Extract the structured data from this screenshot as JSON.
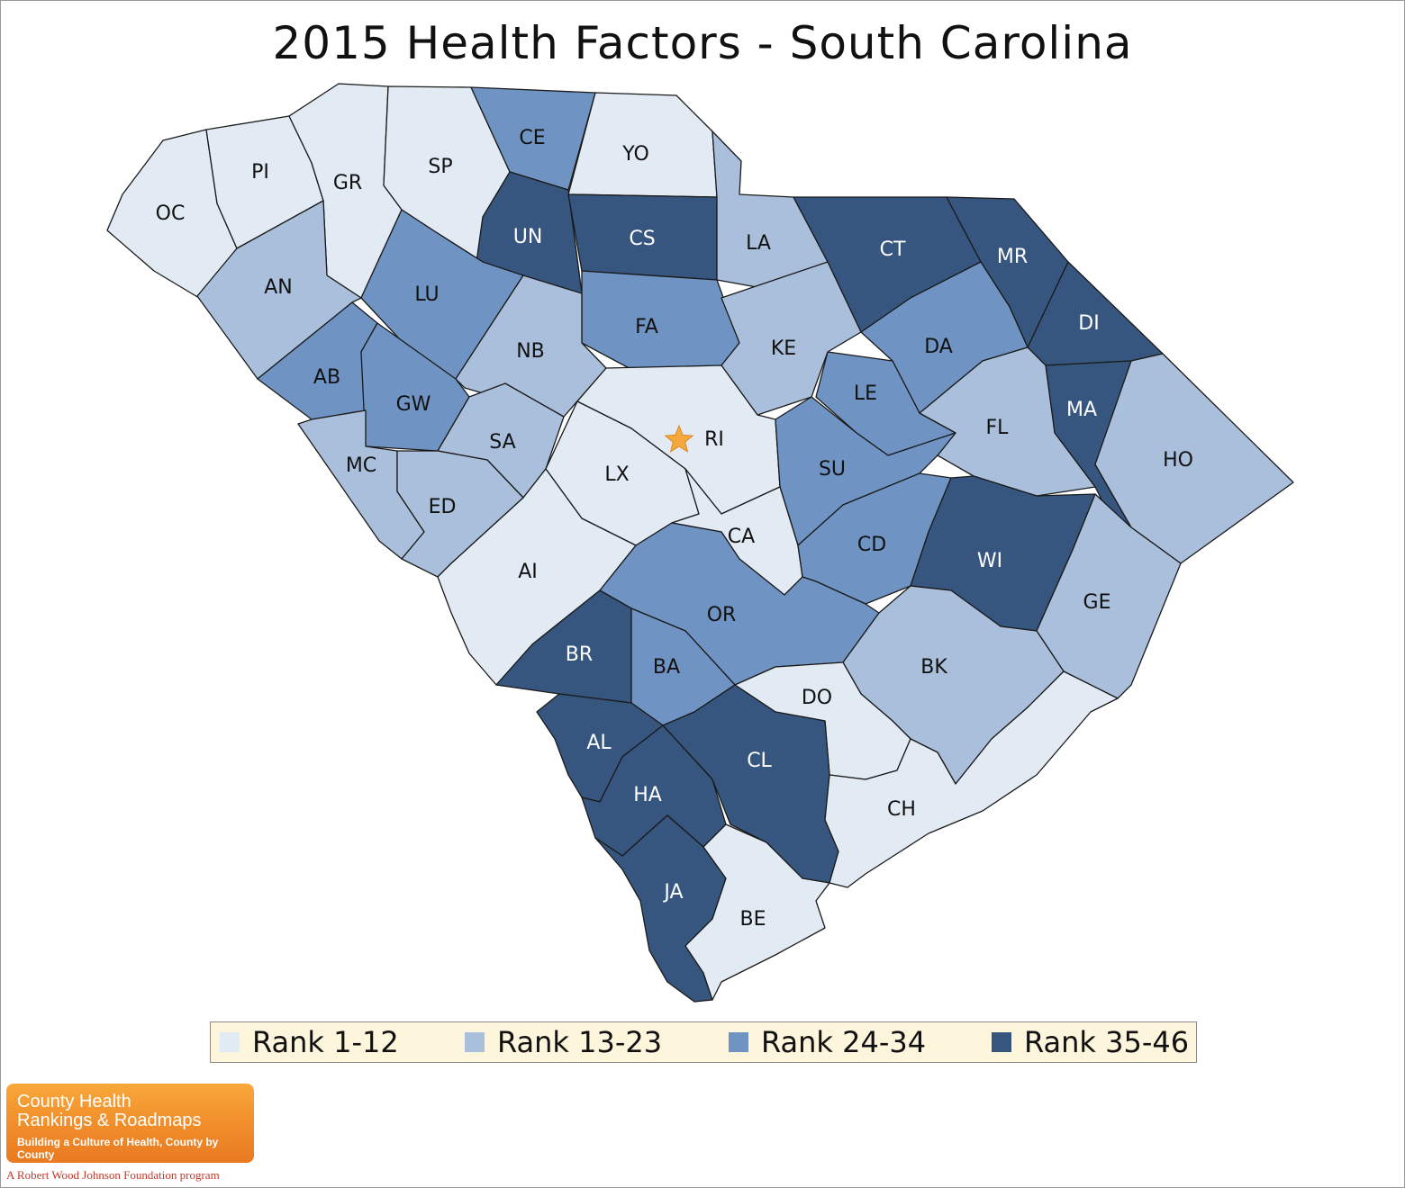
{
  "title": "2015 Health Factors - South Carolina",
  "colors": {
    "rank_1_12": "#e2eaf4",
    "rank_13_23": "#a9bfdb",
    "rank_24_34": "#6f94c3",
    "rank_35_46": "#36567f",
    "capital_star": "#f6a93b",
    "legend_bg": "#fdf5dc"
  },
  "legend": [
    {
      "label": "Rank 1-12",
      "group": "rank_1_12"
    },
    {
      "label": "Rank 13-23",
      "group": "rank_13_23"
    },
    {
      "label": "Rank 24-34",
      "group": "rank_24_34"
    },
    {
      "label": "Rank 35-46",
      "group": "rank_35_46"
    }
  ],
  "capital": {
    "icon": "star-icon",
    "county": "RI"
  },
  "counties": [
    {
      "abbr": "OC",
      "group": "rank_1_12"
    },
    {
      "abbr": "PI",
      "group": "rank_1_12"
    },
    {
      "abbr": "GR",
      "group": "rank_1_12"
    },
    {
      "abbr": "SP",
      "group": "rank_1_12"
    },
    {
      "abbr": "CE",
      "group": "rank_24_34"
    },
    {
      "abbr": "YO",
      "group": "rank_1_12"
    },
    {
      "abbr": "UN",
      "group": "rank_35_46"
    },
    {
      "abbr": "CS",
      "group": "rank_35_46"
    },
    {
      "abbr": "LA",
      "group": "rank_13_23"
    },
    {
      "abbr": "CT",
      "group": "rank_35_46"
    },
    {
      "abbr": "MR",
      "group": "rank_35_46"
    },
    {
      "abbr": "AN",
      "group": "rank_13_23"
    },
    {
      "abbr": "LU",
      "group": "rank_24_34"
    },
    {
      "abbr": "FA",
      "group": "rank_24_34"
    },
    {
      "abbr": "DI",
      "group": "rank_35_46"
    },
    {
      "abbr": "NB",
      "group": "rank_13_23"
    },
    {
      "abbr": "KE",
      "group": "rank_13_23"
    },
    {
      "abbr": "DA",
      "group": "rank_24_34"
    },
    {
      "abbr": "AB",
      "group": "rank_24_34"
    },
    {
      "abbr": "GW",
      "group": "rank_24_34"
    },
    {
      "abbr": "LE",
      "group": "rank_24_34"
    },
    {
      "abbr": "MA",
      "group": "rank_35_46"
    },
    {
      "abbr": "RI",
      "group": "rank_1_12"
    },
    {
      "abbr": "FL",
      "group": "rank_13_23"
    },
    {
      "abbr": "SA",
      "group": "rank_13_23"
    },
    {
      "abbr": "HO",
      "group": "rank_13_23"
    },
    {
      "abbr": "MC",
      "group": "rank_13_23"
    },
    {
      "abbr": "SU",
      "group": "rank_24_34"
    },
    {
      "abbr": "LX",
      "group": "rank_1_12"
    },
    {
      "abbr": "ED",
      "group": "rank_13_23"
    },
    {
      "abbr": "CA",
      "group": "rank_1_12"
    },
    {
      "abbr": "CD",
      "group": "rank_24_34"
    },
    {
      "abbr": "WI",
      "group": "rank_35_46"
    },
    {
      "abbr": "AI",
      "group": "rank_1_12"
    },
    {
      "abbr": "GE",
      "group": "rank_13_23"
    },
    {
      "abbr": "OR",
      "group": "rank_24_34"
    },
    {
      "abbr": "BR",
      "group": "rank_35_46"
    },
    {
      "abbr": "BA",
      "group": "rank_24_34"
    },
    {
      "abbr": "BK",
      "group": "rank_13_23"
    },
    {
      "abbr": "DO",
      "group": "rank_1_12"
    },
    {
      "abbr": "AL",
      "group": "rank_35_46"
    },
    {
      "abbr": "CL",
      "group": "rank_35_46"
    },
    {
      "abbr": "HA",
      "group": "rank_35_46"
    },
    {
      "abbr": "CH",
      "group": "rank_1_12"
    },
    {
      "abbr": "JA",
      "group": "rank_35_46"
    },
    {
      "abbr": "BE",
      "group": "rank_1_12"
    }
  ],
  "logo": {
    "line1": "County Health",
    "line2": "Rankings & Roadmaps",
    "tagline": "Building a Culture of Health, County by County"
  },
  "attribution": "A Robert Wood Johnson Foundation program"
}
